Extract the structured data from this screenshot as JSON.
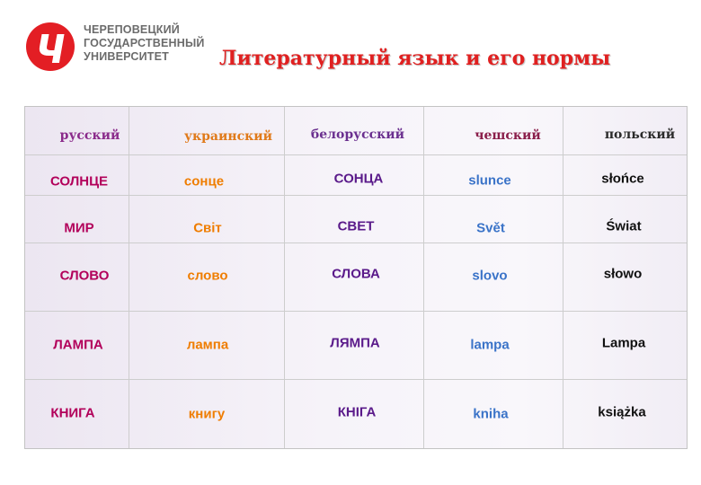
{
  "university": {
    "lines": [
      "ЧЕРЕПОВЕЦКИЙ",
      "ГОСУДАРСТВЕННЫЙ",
      "УНИВЕРСИТЕТ"
    ]
  },
  "title": "Литературный язык и его нормы",
  "colors": {
    "brand": "#e31e24",
    "title": "#e02020",
    "russian": "#b2005a",
    "ukrainian": "#ef7d00",
    "belarusian": "#5a1a8a",
    "czech": "#3a73c8",
    "polish": "#111111"
  },
  "table": {
    "headers": [
      "русский",
      "украинский",
      "белорусский",
      "чешский",
      "польский"
    ],
    "rows": [
      [
        "СОЛНЦЕ",
        "сонце",
        "СОНЦА",
        "slunce",
        "słońce"
      ],
      [
        "МИР",
        "Світ",
        "СВЕТ",
        "Svět",
        "Świat"
      ],
      [
        "СЛОВО",
        "слово",
        "СЛОВА",
        "slovo",
        "słowo"
      ],
      [
        "ЛАМПА",
        "лампа",
        "ЛЯМПА",
        "lampa",
        "Lampa"
      ],
      [
        "КНИГА",
        "книгу",
        "КНІГА",
        "kniha",
        "książka"
      ]
    ]
  }
}
